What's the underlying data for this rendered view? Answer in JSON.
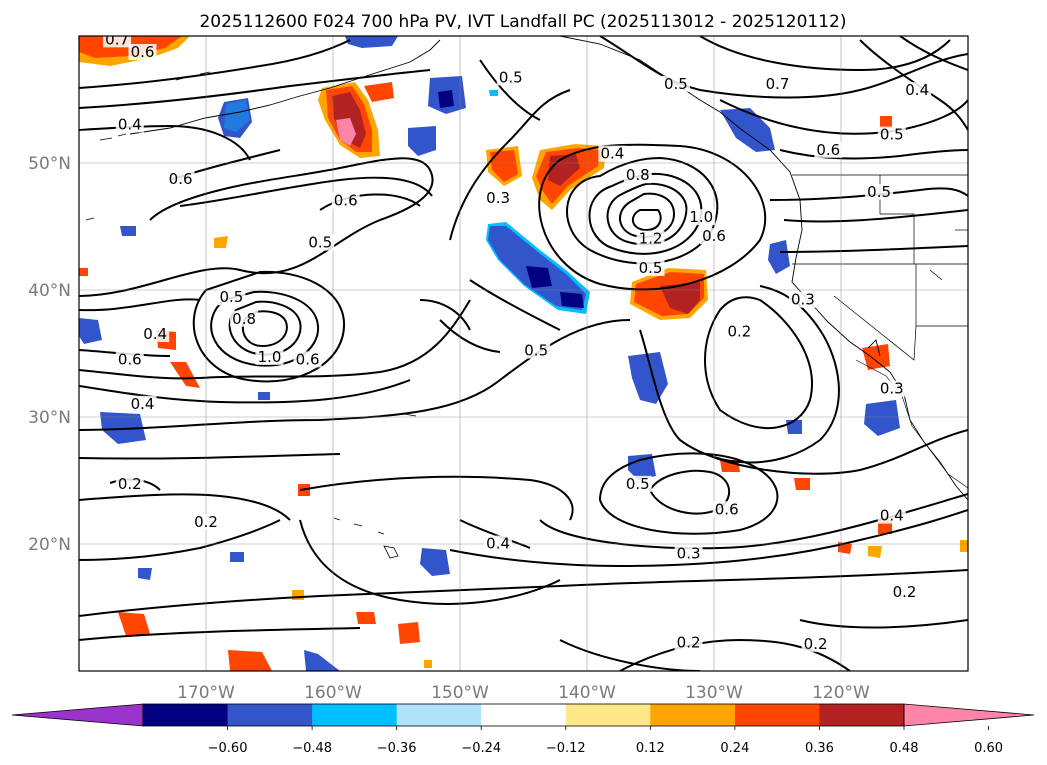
{
  "title": "2025112600 F024 700 hPa PV, IVT Landfall PC (2025113012 - 2025120112)",
  "map": {
    "lon_range": [
      -180,
      -110
    ],
    "lat_range": [
      10,
      60
    ],
    "lon_ticks": [
      {
        "lon": -170,
        "label": "170°W"
      },
      {
        "lon": -160,
        "label": "160°W"
      },
      {
        "lon": -150,
        "label": "150°W"
      },
      {
        "lon": -140,
        "label": "140°W"
      },
      {
        "lon": -130,
        "label": "130°W"
      },
      {
        "lon": -120,
        "label": "120°W"
      }
    ],
    "lat_ticks": [
      {
        "lat": 20,
        "label": "20°N"
      },
      {
        "lat": 30,
        "label": "30°N"
      },
      {
        "lat": 40,
        "label": "40°N"
      },
      {
        "lat": 50,
        "label": "50°N"
      }
    ],
    "gridlines": true,
    "contour_labels": [
      {
        "text": "0.7",
        "lon": -177,
        "lat": 59.5
      },
      {
        "text": "0.6",
        "lon": -175,
        "lat": 58.5
      },
      {
        "text": "0.5",
        "lon": -146,
        "lat": 56.5
      },
      {
        "text": "0.5",
        "lon": -133,
        "lat": 56.0
      },
      {
        "text": "0.7",
        "lon": -125,
        "lat": 56.0
      },
      {
        "text": "0.4",
        "lon": -114,
        "lat": 55.5
      },
      {
        "text": "0.4",
        "lon": -176,
        "lat": 52.8
      },
      {
        "text": "0.5",
        "lon": -116,
        "lat": 52.0
      },
      {
        "text": "0.6",
        "lon": -121,
        "lat": 50.8
      },
      {
        "text": "0.4",
        "lon": -138,
        "lat": 50.5
      },
      {
        "text": "0.6",
        "lon": -172,
        "lat": 48.5
      },
      {
        "text": "0.8",
        "lon": -136,
        "lat": 48.8
      },
      {
        "text": "0.6",
        "lon": -159,
        "lat": 46.8
      },
      {
        "text": "0.3",
        "lon": -147,
        "lat": 47.0
      },
      {
        "text": "1.0",
        "lon": -131,
        "lat": 45.5
      },
      {
        "text": "0.5",
        "lon": -117,
        "lat": 47.5
      },
      {
        "text": "0.5",
        "lon": -161,
        "lat": 43.5
      },
      {
        "text": "1.2",
        "lon": -135,
        "lat": 43.8
      },
      {
        "text": "0.6",
        "lon": -130,
        "lat": 44.0
      },
      {
        "text": "0.5",
        "lon": -135,
        "lat": 41.5
      },
      {
        "text": "0.5",
        "lon": -168,
        "lat": 39.2
      },
      {
        "text": "0.3",
        "lon": -123,
        "lat": 39.0
      },
      {
        "text": "0.8",
        "lon": -167,
        "lat": 37.5
      },
      {
        "text": "0.4",
        "lon": -174,
        "lat": 36.3
      },
      {
        "text": "0.2",
        "lon": -128,
        "lat": 36.5
      },
      {
        "text": "1.0",
        "lon": -165,
        "lat": 34.5
      },
      {
        "text": "0.6",
        "lon": -176,
        "lat": 34.3
      },
      {
        "text": "0.6",
        "lon": -162,
        "lat": 34.3
      },
      {
        "text": "0.5",
        "lon": -144,
        "lat": 35.0
      },
      {
        "text": "0.4",
        "lon": -175,
        "lat": 30.8
      },
      {
        "text": "0.3",
        "lon": -116,
        "lat": 32.0
      },
      {
        "text": "0.2",
        "lon": -176,
        "lat": 24.5
      },
      {
        "text": "0.5",
        "lon": -136,
        "lat": 24.5
      },
      {
        "text": "0.6",
        "lon": -129,
        "lat": 22.5
      },
      {
        "text": "0.4",
        "lon": -116,
        "lat": 22.0
      },
      {
        "text": "0.2",
        "lon": -170,
        "lat": 21.5
      },
      {
        "text": "0.4",
        "lon": -147,
        "lat": 19.8
      },
      {
        "text": "0.3",
        "lon": -132,
        "lat": 19.0
      },
      {
        "text": "0.2",
        "lon": -115,
        "lat": 16.0
      },
      {
        "text": "0.2",
        "lon": -132,
        "lat": 12.0
      },
      {
        "text": "0.2",
        "lon": -122,
        "lat": 11.9
      }
    ]
  },
  "colorbar": {
    "ticks": [
      "−0.60",
      "−0.48",
      "−0.36",
      "−0.24",
      "−0.12",
      "0.12",
      "0.24",
      "0.36",
      "0.48",
      "0.60"
    ],
    "colors": [
      "#9933cc",
      "#000080",
      "#3355cc",
      "#00bfff",
      "#aee3fa",
      "#ffffff",
      "#ffe88a",
      "#ffa500",
      "#ff4500",
      "#b22222",
      "#ff85a8"
    ],
    "extend": "both"
  }
}
